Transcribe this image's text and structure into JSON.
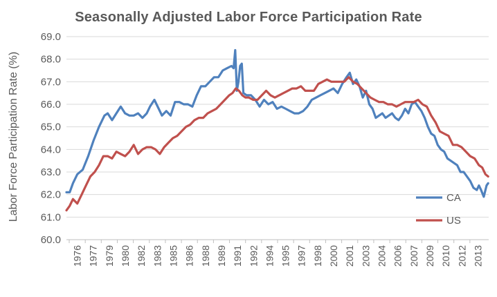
{
  "chart_data": {
    "type": "line",
    "title": "Seasonally Adjusted Labor Force Participation Rate",
    "xlabel": "",
    "ylabel": "Labor Force Participation Rate (%)",
    "ylim": [
      60.0,
      69.0
    ],
    "yticks": [
      "60.0",
      "61.0",
      "62.0",
      "63.0",
      "64.0",
      "65.0",
      "66.0",
      "67.0",
      "68.0",
      "69.0"
    ],
    "xticks": [
      "1976",
      "1977",
      "1979",
      "1980",
      "1982",
      "1983",
      "1985",
      "1986",
      "1988",
      "1989",
      "1991",
      "1992",
      "1994",
      "1995",
      "1997",
      "1998",
      "2000",
      "2001",
      "2003",
      "2004",
      "2006",
      "2007",
      "2009",
      "2010",
      "2012",
      "2013"
    ],
    "xlim": [
      1976.0,
      2014.9
    ],
    "grid": "horizontal",
    "legend_position": "bottom-right",
    "series": [
      {
        "name": "CA",
        "color": "#4F81BD",
        "points": [
          [
            1976.0,
            62.1
          ],
          [
            1976.3,
            62.1
          ],
          [
            1976.6,
            62.5
          ],
          [
            1977.0,
            62.9
          ],
          [
            1977.5,
            63.1
          ],
          [
            1978.0,
            63.7
          ],
          [
            1978.5,
            64.4
          ],
          [
            1979.0,
            65.0
          ],
          [
            1979.5,
            65.5
          ],
          [
            1979.8,
            65.6
          ],
          [
            1980.2,
            65.3
          ],
          [
            1980.6,
            65.6
          ],
          [
            1981.0,
            65.9
          ],
          [
            1981.4,
            65.6
          ],
          [
            1981.8,
            65.5
          ],
          [
            1982.2,
            65.5
          ],
          [
            1982.6,
            65.6
          ],
          [
            1983.0,
            65.4
          ],
          [
            1983.4,
            65.6
          ],
          [
            1983.7,
            65.9
          ],
          [
            1984.1,
            66.2
          ],
          [
            1984.5,
            65.8
          ],
          [
            1984.8,
            65.5
          ],
          [
            1985.2,
            65.7
          ],
          [
            1985.6,
            65.5
          ],
          [
            1986.0,
            66.1
          ],
          [
            1986.4,
            66.1
          ],
          [
            1986.8,
            66.0
          ],
          [
            1987.2,
            66.0
          ],
          [
            1987.6,
            65.9
          ],
          [
            1988.0,
            66.4
          ],
          [
            1988.4,
            66.8
          ],
          [
            1988.8,
            66.8
          ],
          [
            1989.2,
            67.0
          ],
          [
            1989.6,
            67.2
          ],
          [
            1990.0,
            67.2
          ],
          [
            1990.4,
            67.5
          ],
          [
            1990.8,
            67.6
          ],
          [
            1991.2,
            67.7
          ],
          [
            1991.4,
            67.6
          ],
          [
            1991.55,
            68.4
          ],
          [
            1991.7,
            66.6
          ],
          [
            1991.85,
            67.0
          ],
          [
            1992.0,
            67.7
          ],
          [
            1992.15,
            67.8
          ],
          [
            1992.3,
            66.5
          ],
          [
            1992.6,
            66.4
          ],
          [
            1993.0,
            66.4
          ],
          [
            1993.4,
            66.2
          ],
          [
            1993.8,
            65.9
          ],
          [
            1994.2,
            66.2
          ],
          [
            1994.6,
            66.0
          ],
          [
            1995.0,
            66.1
          ],
          [
            1995.4,
            65.8
          ],
          [
            1995.8,
            65.9
          ],
          [
            1996.2,
            65.8
          ],
          [
            1996.6,
            65.7
          ],
          [
            1997.0,
            65.6
          ],
          [
            1997.4,
            65.6
          ],
          [
            1997.8,
            65.7
          ],
          [
            1998.2,
            65.9
          ],
          [
            1998.6,
            66.2
          ],
          [
            1999.0,
            66.3
          ],
          [
            1999.4,
            66.4
          ],
          [
            1999.8,
            66.5
          ],
          [
            2000.2,
            66.6
          ],
          [
            2000.6,
            66.7
          ],
          [
            2001.0,
            66.5
          ],
          [
            2001.4,
            66.9
          ],
          [
            2001.8,
            67.2
          ],
          [
            2002.1,
            67.4
          ],
          [
            2002.4,
            66.9
          ],
          [
            2002.7,
            67.1
          ],
          [
            2003.0,
            66.8
          ],
          [
            2003.3,
            66.3
          ],
          [
            2003.6,
            66.6
          ],
          [
            2003.9,
            66.0
          ],
          [
            2004.2,
            65.8
          ],
          [
            2004.5,
            65.4
          ],
          [
            2004.8,
            65.5
          ],
          [
            2005.1,
            65.6
          ],
          [
            2005.4,
            65.4
          ],
          [
            2005.7,
            65.5
          ],
          [
            2006.0,
            65.6
          ],
          [
            2006.3,
            65.4
          ],
          [
            2006.6,
            65.3
          ],
          [
            2006.9,
            65.5
          ],
          [
            2007.2,
            65.8
          ],
          [
            2007.5,
            65.6
          ],
          [
            2007.8,
            66.0
          ],
          [
            2008.1,
            66.1
          ],
          [
            2008.4,
            65.9
          ],
          [
            2008.7,
            65.7
          ],
          [
            2009.0,
            65.4
          ],
          [
            2009.3,
            65.0
          ],
          [
            2009.6,
            64.7
          ],
          [
            2009.9,
            64.6
          ],
          [
            2010.2,
            64.2
          ],
          [
            2010.5,
            64.0
          ],
          [
            2010.8,
            63.9
          ],
          [
            2011.1,
            63.6
          ],
          [
            2011.4,
            63.5
          ],
          [
            2011.7,
            63.4
          ],
          [
            2012.0,
            63.3
          ],
          [
            2012.3,
            63.0
          ],
          [
            2012.6,
            63.0
          ],
          [
            2012.9,
            62.8
          ],
          [
            2013.2,
            62.6
          ],
          [
            2013.5,
            62.3
          ],
          [
            2013.8,
            62.2
          ],
          [
            2014.0,
            62.4
          ],
          [
            2014.2,
            62.2
          ],
          [
            2014.45,
            61.9
          ],
          [
            2014.7,
            62.4
          ],
          [
            2014.85,
            62.5
          ]
        ]
      },
      {
        "name": "US",
        "color": "#C0504D",
        "points": [
          [
            1976.0,
            61.3
          ],
          [
            1976.3,
            61.5
          ],
          [
            1976.6,
            61.8
          ],
          [
            1977.0,
            61.6
          ],
          [
            1977.4,
            62.0
          ],
          [
            1977.8,
            62.4
          ],
          [
            1978.2,
            62.8
          ],
          [
            1978.6,
            63.0
          ],
          [
            1979.0,
            63.3
          ],
          [
            1979.4,
            63.7
          ],
          [
            1979.8,
            63.7
          ],
          [
            1980.2,
            63.6
          ],
          [
            1980.6,
            63.9
          ],
          [
            1981.0,
            63.8
          ],
          [
            1981.4,
            63.7
          ],
          [
            1981.8,
            63.9
          ],
          [
            1982.2,
            64.2
          ],
          [
            1982.6,
            63.8
          ],
          [
            1983.0,
            64.0
          ],
          [
            1983.4,
            64.1
          ],
          [
            1983.8,
            64.1
          ],
          [
            1984.2,
            64.0
          ],
          [
            1984.6,
            63.8
          ],
          [
            1985.0,
            64.1
          ],
          [
            1985.4,
            64.3
          ],
          [
            1985.8,
            64.5
          ],
          [
            1986.2,
            64.6
          ],
          [
            1986.6,
            64.8
          ],
          [
            1987.0,
            65.0
          ],
          [
            1987.4,
            65.1
          ],
          [
            1987.8,
            65.3
          ],
          [
            1988.2,
            65.4
          ],
          [
            1988.6,
            65.4
          ],
          [
            1989.0,
            65.6
          ],
          [
            1989.4,
            65.7
          ],
          [
            1989.8,
            65.8
          ],
          [
            1990.2,
            66.0
          ],
          [
            1990.6,
            66.2
          ],
          [
            1991.0,
            66.4
          ],
          [
            1991.3,
            66.5
          ],
          [
            1991.6,
            66.7
          ],
          [
            1991.9,
            66.6
          ],
          [
            1992.2,
            66.4
          ],
          [
            1992.5,
            66.3
          ],
          [
            1992.8,
            66.3
          ],
          [
            1993.2,
            66.2
          ],
          [
            1993.6,
            66.2
          ],
          [
            1994.0,
            66.4
          ],
          [
            1994.4,
            66.6
          ],
          [
            1994.8,
            66.4
          ],
          [
            1995.2,
            66.3
          ],
          [
            1995.6,
            66.4
          ],
          [
            1996.0,
            66.5
          ],
          [
            1996.4,
            66.6
          ],
          [
            1996.8,
            66.7
          ],
          [
            1997.2,
            66.7
          ],
          [
            1997.6,
            66.8
          ],
          [
            1998.0,
            66.6
          ],
          [
            1998.4,
            66.6
          ],
          [
            1998.8,
            66.6
          ],
          [
            1999.2,
            66.9
          ],
          [
            1999.6,
            67.0
          ],
          [
            2000.0,
            67.1
          ],
          [
            2000.4,
            67.0
          ],
          [
            2000.8,
            67.0
          ],
          [
            2001.2,
            67.0
          ],
          [
            2001.6,
            67.0
          ],
          [
            2002.0,
            67.2
          ],
          [
            2002.4,
            67.0
          ],
          [
            2002.8,
            66.9
          ],
          [
            2003.2,
            66.7
          ],
          [
            2003.6,
            66.5
          ],
          [
            2004.0,
            66.3
          ],
          [
            2004.4,
            66.2
          ],
          [
            2004.8,
            66.1
          ],
          [
            2005.2,
            66.1
          ],
          [
            2005.6,
            66.0
          ],
          [
            2006.0,
            66.0
          ],
          [
            2006.4,
            65.9
          ],
          [
            2006.8,
            66.0
          ],
          [
            2007.2,
            66.1
          ],
          [
            2007.6,
            66.1
          ],
          [
            2008.0,
            66.1
          ],
          [
            2008.4,
            66.2
          ],
          [
            2008.8,
            66.0
          ],
          [
            2009.2,
            65.9
          ],
          [
            2009.6,
            65.5
          ],
          [
            2010.0,
            65.2
          ],
          [
            2010.4,
            64.8
          ],
          [
            2010.8,
            64.7
          ],
          [
            2011.2,
            64.6
          ],
          [
            2011.6,
            64.2
          ],
          [
            2012.0,
            64.2
          ],
          [
            2012.4,
            64.1
          ],
          [
            2012.8,
            63.9
          ],
          [
            2013.2,
            63.7
          ],
          [
            2013.6,
            63.6
          ],
          [
            2014.0,
            63.3
          ],
          [
            2014.3,
            63.2
          ],
          [
            2014.6,
            62.9
          ],
          [
            2014.85,
            62.8
          ]
        ]
      }
    ]
  }
}
